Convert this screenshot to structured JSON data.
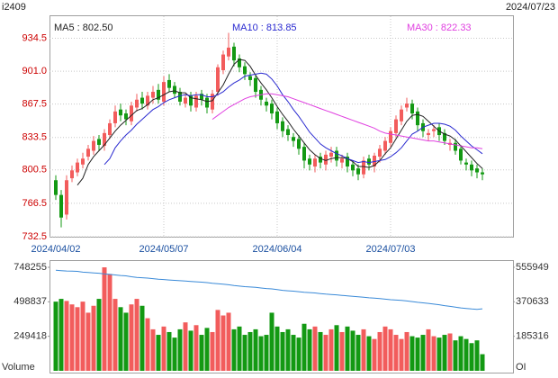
{
  "chart_data": [
    {
      "type": "candlestick",
      "title": "i2409",
      "subtitle": "2024/07/23",
      "up_color": "#f25c5c",
      "down_color": "#139913",
      "tick_color": "#cc0000",
      "date_color": "#1a4fa0",
      "grid": true,
      "ylim": [
        732.5,
        957
      ],
      "yticks": [
        732.5,
        766.5,
        800.5,
        833.5,
        867.5,
        {
          "value": 901,
          "label": "901.0"
        },
        934.5
      ],
      "categories": [
        "2024/04/02",
        null,
        null,
        null,
        null,
        null,
        null,
        null,
        null,
        null,
        null,
        null,
        null,
        null,
        null,
        null,
        null,
        null,
        null,
        null,
        "2024/05/07",
        null,
        null,
        null,
        null,
        null,
        null,
        null,
        null,
        null,
        null,
        null,
        null,
        null,
        null,
        null,
        null,
        null,
        null,
        null,
        null,
        "2024/06/04",
        null,
        null,
        null,
        null,
        null,
        null,
        null,
        null,
        null,
        null,
        null,
        null,
        null,
        null,
        null,
        null,
        null,
        null,
        null,
        null,
        "2024/07/03",
        null,
        null,
        null,
        null,
        null,
        null,
        null,
        null,
        null,
        null,
        null,
        null,
        null,
        null,
        null,
        null,
        null
      ],
      "open": [
        790,
        775,
        755,
        792,
        798,
        806,
        814,
        820,
        832,
        825,
        836,
        848,
        862,
        858,
        850,
        864,
        874,
        866,
        874,
        882,
        870,
        892,
        886,
        880,
        868,
        876,
        864,
        878,
        874,
        862,
        880,
        902,
        916,
        926,
        914,
        906,
        896,
        894,
        882,
        870,
        868,
        860,
        850,
        842,
        834,
        832,
        824,
        812,
        804,
        814,
        806,
        814,
        820,
        808,
        814,
        806,
        802,
        796,
        812,
        804,
        814,
        820,
        828,
        838,
        850,
        864,
        868,
        860,
        848,
        836,
        840,
        844,
        838,
        826,
        828,
        822,
        808,
        806,
        802,
        798
      ],
      "high": [
        795,
        780,
        795,
        805,
        812,
        818,
        826,
        835,
        836,
        842,
        852,
        866,
        868,
        862,
        870,
        878,
        880,
        880,
        886,
        888,
        896,
        898,
        890,
        884,
        878,
        880,
        880,
        882,
        878,
        882,
        908,
        922,
        940,
        930,
        918,
        910,
        900,
        898,
        886,
        874,
        872,
        864,
        854,
        846,
        838,
        836,
        828,
        816,
        816,
        818,
        820,
        824,
        824,
        816,
        818,
        810,
        806,
        814,
        816,
        818,
        826,
        834,
        844,
        856,
        866,
        874,
        872,
        864,
        852,
        842,
        846,
        848,
        842,
        832,
        832,
        826,
        812,
        810,
        806,
        802
      ],
      "low": [
        770,
        742,
        750,
        788,
        794,
        802,
        810,
        816,
        820,
        820,
        832,
        844,
        850,
        846,
        846,
        860,
        862,
        862,
        868,
        868,
        866,
        880,
        874,
        866,
        864,
        860,
        860,
        866,
        858,
        858,
        876,
        898,
        912,
        906,
        900,
        892,
        886,
        874,
        866,
        860,
        852,
        842,
        834,
        830,
        824,
        816,
        802,
        800,
        798,
        802,
        800,
        808,
        804,
        802,
        798,
        794,
        790,
        792,
        800,
        798,
        808,
        816,
        824,
        834,
        846,
        860,
        852,
        840,
        834,
        830,
        834,
        830,
        826,
        820,
        816,
        806,
        800,
        794,
        792,
        790
      ],
      "close": [
        775,
        752,
        790,
        800,
        808,
        812,
        822,
        830,
        826,
        838,
        848,
        860,
        856,
        852,
        866,
        872,
        868,
        876,
        880,
        872,
        890,
        884,
        878,
        870,
        874,
        866,
        876,
        872,
        864,
        878,
        905,
        918,
        925,
        912,
        905,
        898,
        892,
        880,
        872,
        866,
        858,
        848,
        840,
        836,
        830,
        822,
        810,
        806,
        812,
        808,
        816,
        818,
        810,
        812,
        804,
        800,
        796,
        810,
        806,
        815,
        822,
        830,
        840,
        852,
        862,
        868,
        858,
        846,
        840,
        838,
        842,
        836,
        830,
        828,
        820,
        810,
        806,
        800,
        798,
        796
      ],
      "series": [
        {
          "name": "MA5 : 802.50",
          "color": "#222222",
          "values": [
            null,
            null,
            null,
            null,
            785,
            792,
            806,
            814,
            820,
            826,
            833,
            840,
            846,
            851,
            856,
            861,
            863,
            867,
            872,
            874,
            877,
            880,
            881,
            879,
            879,
            874,
            873,
            872,
            870,
            871,
            879,
            887,
            898,
            908,
            913,
            912,
            906,
            897,
            889,
            882,
            874,
            865,
            857,
            850,
            842,
            835,
            828,
            821,
            816,
            812,
            810,
            812,
            813,
            813,
            812,
            809,
            804,
            804,
            803,
            805,
            810,
            817,
            823,
            832,
            841,
            850,
            856,
            857,
            855,
            850,
            845,
            840,
            837,
            835,
            831,
            825,
            819,
            813,
            807,
            802
          ]
        },
        {
          "name": "MA10 : 813.85",
          "color": "#2a2ad0",
          "values": [
            null,
            null,
            null,
            null,
            null,
            null,
            null,
            null,
            null,
            806,
            812,
            823,
            830,
            836,
            841,
            847,
            852,
            857,
            862,
            865,
            869,
            872,
            874,
            876,
            877,
            876,
            877,
            877,
            875,
            875,
            877,
            880,
            885,
            889,
            892,
            896,
            897,
            898,
            899,
            898,
            893,
            886,
            877,
            870,
            862,
            855,
            847,
            839,
            833,
            827,
            823,
            820,
            817,
            815,
            812,
            810,
            808,
            809,
            808,
            809,
            810,
            811,
            814,
            818,
            823,
            830,
            837,
            840,
            844,
            846,
            848,
            848,
            847,
            845,
            841,
            835,
            830,
            825,
            821,
            817
          ]
        },
        {
          "name": "MA30 : 822.33",
          "color": "#e040e0",
          "values": [
            null,
            null,
            null,
            null,
            null,
            null,
            null,
            null,
            null,
            null,
            null,
            null,
            null,
            null,
            null,
            null,
            null,
            null,
            null,
            null,
            null,
            null,
            null,
            null,
            null,
            null,
            null,
            null,
            null,
            852,
            856,
            860,
            864,
            867,
            870,
            873,
            875,
            876,
            877,
            878,
            878,
            877,
            876,
            875,
            873,
            871,
            869,
            867,
            865,
            863,
            861,
            859,
            857,
            855,
            853,
            851,
            849,
            847,
            845,
            843,
            840,
            838,
            837,
            836,
            835,
            834,
            833,
            832,
            831,
            830,
            830,
            829,
            828,
            827,
            826,
            825,
            824,
            823,
            823,
            822
          ]
        }
      ]
    },
    {
      "type": "bar",
      "ylim": [
        0,
        793800
      ],
      "yticks": [
        249418,
        498837,
        748255
      ],
      "y2lim": [
        0,
        589800
      ],
      "y2ticks": [
        185316,
        370633,
        555949
      ],
      "series": [
        {
          "name": "Volume",
          "values": [
            500000,
            520000,
            505000,
            480000,
            460000,
            500000,
            420000,
            470000,
            520000,
            748000,
            700000,
            520000,
            460000,
            420000,
            480000,
            520000,
            470000,
            380000,
            300000,
            260000,
            320000,
            280000,
            240000,
            300000,
            350000,
            290000,
            330000,
            260000,
            310000,
            280000,
            440000,
            400000,
            420000,
            300000,
            320000,
            260000,
            280000,
            300000,
            250000,
            260000,
            420000,
            320000,
            280000,
            300000,
            260000,
            240000,
            340000,
            300000,
            320000,
            280000,
            260000,
            300000,
            330000,
            280000,
            320000,
            290000,
            260000,
            300000,
            250000,
            230000,
            280000,
            320000,
            300000,
            260000,
            230000,
            280000,
            250000,
            240000,
            260000,
            300000,
            250000,
            240000,
            260000,
            270000,
            220000,
            250000,
            230000,
            200000,
            220000,
            120000
          ]
        },
        {
          "name": "OI",
          "axis": "y2",
          "color": "#3a8ad8",
          "values": [
            540000,
            538000,
            536000,
            535000,
            534000,
            530000,
            528000,
            526000,
            524000,
            520000,
            518000,
            515000,
            512000,
            510000,
            505000,
            502000,
            500000,
            498000,
            495000,
            492000,
            490000,
            488000,
            486000,
            484000,
            482000,
            480000,
            478000,
            476000,
            474000,
            470000,
            468000,
            465000,
            462000,
            458000,
            455000,
            452000,
            450000,
            448000,
            445000,
            442000,
            440000,
            436000,
            432000,
            430000,
            428000,
            425000,
            422000,
            420000,
            418000,
            415000,
            412000,
            410000,
            408000,
            405000,
            402000,
            400000,
            398000,
            395000,
            392000,
            390000,
            388000,
            385000,
            382000,
            380000,
            378000,
            375000,
            372000,
            368000,
            365000,
            362000,
            358000,
            355000,
            350000,
            346000,
            342000,
            338000,
            335000,
            332000,
            330000,
            333000
          ]
        }
      ]
    }
  ]
}
